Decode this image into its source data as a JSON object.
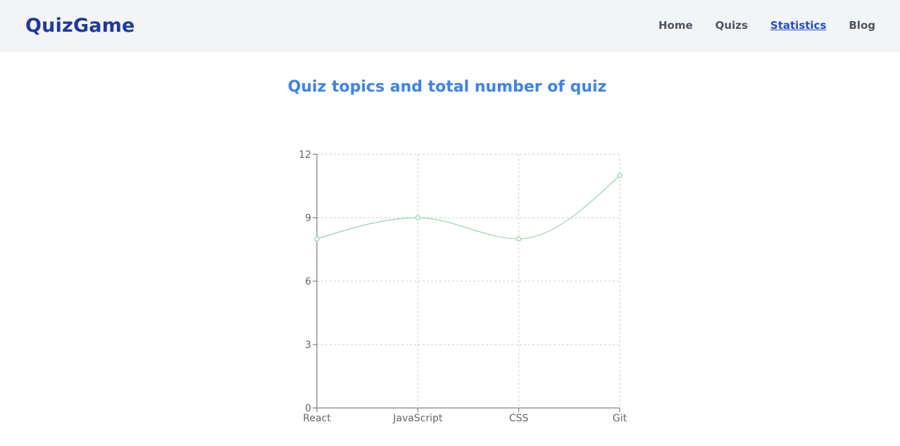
{
  "header": {
    "brand": "QuizGame",
    "nav": [
      {
        "label": "Home",
        "active": false
      },
      {
        "label": "Quizs",
        "active": false
      },
      {
        "label": "Statistics",
        "active": true
      },
      {
        "label": "Blog",
        "active": false
      }
    ]
  },
  "main": {
    "title": "Quiz topics and total number of quiz"
  },
  "colors": {
    "brand": "#1e3a9f",
    "title": "#3b82f6",
    "active_link": "#1d4ed8",
    "line": "#82ca9d"
  },
  "chart_data": {
    "type": "line",
    "categories": [
      "React",
      "JavaScript",
      "CSS",
      "Git"
    ],
    "values": [
      8,
      9,
      8,
      11
    ],
    "title": "",
    "xlabel": "",
    "ylabel": "",
    "ylim": [
      0,
      12
    ],
    "yticks": [
      0,
      3,
      6,
      9,
      12
    ],
    "grid": true,
    "curve": "monotone"
  }
}
